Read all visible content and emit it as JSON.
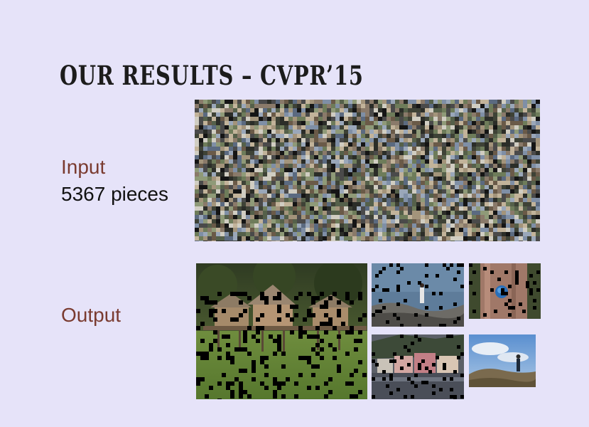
{
  "slide": {
    "title": "OUR RESULTS – CVPR’15"
  },
  "input_section": {
    "label": "Input",
    "count_text": "5367 pieces"
  },
  "output_section": {
    "label": "Output"
  },
  "colors": {
    "background": "#e6e3f9",
    "accent_text": "#7a3b30",
    "body_text": "#111111"
  }
}
